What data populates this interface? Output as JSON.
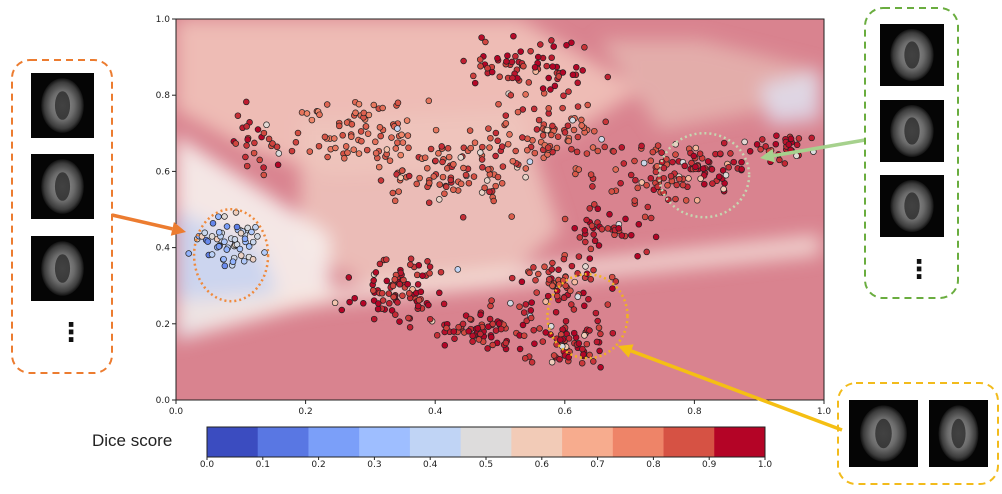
{
  "chart_data": {
    "type": "scatter",
    "title": "",
    "xlabel": "",
    "ylabel": "",
    "xlim": [
      0.0,
      1.0
    ],
    "ylim": [
      0.0,
      1.0
    ],
    "x_ticks": [
      "0.0",
      "0.2",
      "0.4",
      "0.6",
      "0.8",
      "1.0"
    ],
    "y_ticks": [
      "0.0",
      "0.2",
      "0.4",
      "0.6",
      "0.8",
      "1.0"
    ],
    "grid": false,
    "legend": "none",
    "colormap": {
      "title": "Dice score",
      "ticks": [
        "0.0",
        "0.1",
        "0.2",
        "0.3",
        "0.4",
        "0.5",
        "0.6",
        "0.7",
        "0.8",
        "0.9",
        "1.0"
      ],
      "colors": [
        "#3b4cc0",
        "#5977e3",
        "#7b9ff9",
        "#9ebeff",
        "#c0d4f5",
        "#dddcdc",
        "#f2cbb7",
        "#f7ac8e",
        "#ee8468",
        "#d65244",
        "#b40426"
      ]
    },
    "series": [
      {
        "clusters": [
          {
            "x": 0.08,
            "y": 0.42,
            "n": 60,
            "spread": [
              0.045,
              0.055
            ],
            "dice": 0.35
          },
          {
            "x": 0.35,
            "y": 0.28,
            "n": 90,
            "spread": [
              0.06,
              0.07
            ],
            "dice": 0.97
          },
          {
            "x": 0.47,
            "y": 0.19,
            "n": 70,
            "spread": [
              0.06,
              0.05
            ],
            "dice": 0.97
          },
          {
            "x": 0.6,
            "y": 0.15,
            "n": 70,
            "spread": [
              0.05,
              0.06
            ],
            "dice": 0.97
          },
          {
            "x": 0.6,
            "y": 0.3,
            "n": 60,
            "spread": [
              0.06,
              0.06
            ],
            "dice": 0.95
          },
          {
            "x": 0.43,
            "y": 0.6,
            "n": 90,
            "spread": [
              0.08,
              0.08
            ],
            "dice": 0.9
          },
          {
            "x": 0.3,
            "y": 0.7,
            "n": 80,
            "spread": [
              0.08,
              0.08
            ],
            "dice": 0.85
          },
          {
            "x": 0.57,
            "y": 0.7,
            "n": 90,
            "spread": [
              0.08,
              0.09
            ],
            "dice": 0.9
          },
          {
            "x": 0.55,
            "y": 0.88,
            "n": 70,
            "spread": [
              0.08,
              0.06
            ],
            "dice": 0.97
          },
          {
            "x": 0.74,
            "y": 0.6,
            "n": 60,
            "spread": [
              0.07,
              0.07
            ],
            "dice": 0.93
          },
          {
            "x": 0.82,
            "y": 0.6,
            "n": 50,
            "spread": [
              0.045,
              0.05
            ],
            "dice": 0.98
          },
          {
            "x": 0.93,
            "y": 0.66,
            "n": 30,
            "spread": [
              0.05,
              0.03
            ],
            "dice": 0.98
          },
          {
            "x": 0.13,
            "y": 0.68,
            "n": 30,
            "spread": [
              0.05,
              0.06
            ],
            "dice": 0.96
          },
          {
            "x": 0.67,
            "y": 0.45,
            "n": 40,
            "spread": [
              0.07,
              0.06
            ],
            "dice": 0.96
          }
        ]
      }
    ],
    "annotations": [
      {
        "type": "circle",
        "x": 0.085,
        "y": 0.38,
        "color": "#f08a3c"
      },
      {
        "type": "circle",
        "x": 0.815,
        "y": 0.59,
        "color": "#c5d6b0"
      },
      {
        "type": "circle",
        "x": 0.635,
        "y": 0.22,
        "color": "#f2b21f"
      }
    ],
    "panels": [
      {
        "color": "#ec7c30",
        "thumbnails": 3,
        "ellipsis": "⋮"
      },
      {
        "color": "#6aad3f",
        "thumbnails": 3,
        "ellipsis": "⋮"
      },
      {
        "color": "#f2bb1c",
        "thumbnails": 2
      }
    ]
  }
}
